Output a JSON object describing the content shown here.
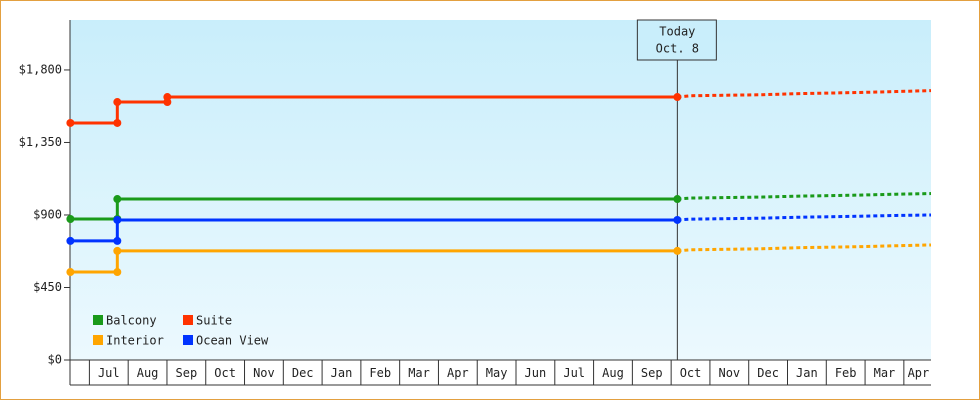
{
  "chart_data": {
    "type": "step",
    "xlim": [
      0.5,
      22.7
    ],
    "ylim": [
      0,
      2110
    ],
    "grid": false,
    "yticks": [
      {
        "value": 0,
        "label": "$0"
      },
      {
        "value": 450,
        "label": "$450"
      },
      {
        "value": 900,
        "label": "$900"
      },
      {
        "value": 1350,
        "label": "$1,350"
      },
      {
        "value": 1800,
        "label": "$1,800"
      }
    ],
    "xticks": [
      {
        "value": 1.5,
        "label": "Jul"
      },
      {
        "value": 2.5,
        "label": "Aug"
      },
      {
        "value": 3.5,
        "label": "Sep"
      },
      {
        "value": 4.5,
        "label": "Oct"
      },
      {
        "value": 5.5,
        "label": "Nov"
      },
      {
        "value": 6.5,
        "label": "Dec"
      },
      {
        "value": 7.5,
        "label": "Jan"
      },
      {
        "value": 8.5,
        "label": "Feb"
      },
      {
        "value": 9.5,
        "label": "Mar"
      },
      {
        "value": 10.5,
        "label": "Apr"
      },
      {
        "value": 11.5,
        "label": "May"
      },
      {
        "value": 12.5,
        "label": "Jun"
      },
      {
        "value": 13.5,
        "label": "Jul"
      },
      {
        "value": 14.5,
        "label": "Aug"
      },
      {
        "value": 15.5,
        "label": "Sep"
      },
      {
        "value": 16.5,
        "label": "Oct"
      },
      {
        "value": 17.5,
        "label": "Nov"
      },
      {
        "value": 18.5,
        "label": "Dec"
      },
      {
        "value": 19.5,
        "label": "Jan"
      },
      {
        "value": 20.5,
        "label": "Feb"
      },
      {
        "value": 21.5,
        "label": "Mar"
      },
      {
        "value": 22.5,
        "label": "Apr"
      }
    ],
    "today": {
      "x": 16.16,
      "label": [
        "Today",
        "Oct. 8"
      ]
    },
    "series": [
      {
        "name": "Balcony",
        "color": "#1a9a1a",
        "x": [
          0.51,
          1.72,
          16.16
        ],
        "values": [
          875,
          999,
          999
        ],
        "forecast_x": [
          16.16,
          16.5,
          18.3,
          19.3,
          20.8,
          21.8,
          22.7
        ],
        "forecast_values": [
          999,
          1005,
          1011,
          1017,
          1023,
          1029,
          1033
        ]
      },
      {
        "name": "Suite",
        "color": "#ff3300",
        "x": [
          0.51,
          1.72,
          3.01,
          16.16
        ],
        "values": [
          1471,
          1601,
          1632,
          1632
        ],
        "forecast_x": [
          16.16,
          16.5,
          18.3,
          19.3,
          20.8,
          21.8,
          22.7
        ],
        "forecast_values": [
          1632,
          1640,
          1646,
          1653,
          1660,
          1666,
          1672
        ]
      },
      {
        "name": "Interior",
        "color": "#ffa500",
        "x": [
          0.51,
          1.72,
          16.16
        ],
        "values": [
          546,
          677,
          677
        ],
        "forecast_x": [
          16.16,
          16.5,
          18.3,
          19.3,
          20.8,
          21.8,
          22.7
        ],
        "forecast_values": [
          677,
          684,
          690,
          697,
          703,
          709,
          714
        ]
      },
      {
        "name": "Ocean View",
        "color": "#0033ff",
        "x": [
          0.51,
          1.72,
          16.16
        ],
        "values": [
          739,
          869,
          869
        ],
        "forecast_x": [
          16.16,
          16.5,
          18.3,
          19.3,
          20.8,
          21.8,
          22.7
        ],
        "forecast_values": [
          869,
          874,
          880,
          886,
          892,
          897,
          900
        ]
      }
    ]
  }
}
